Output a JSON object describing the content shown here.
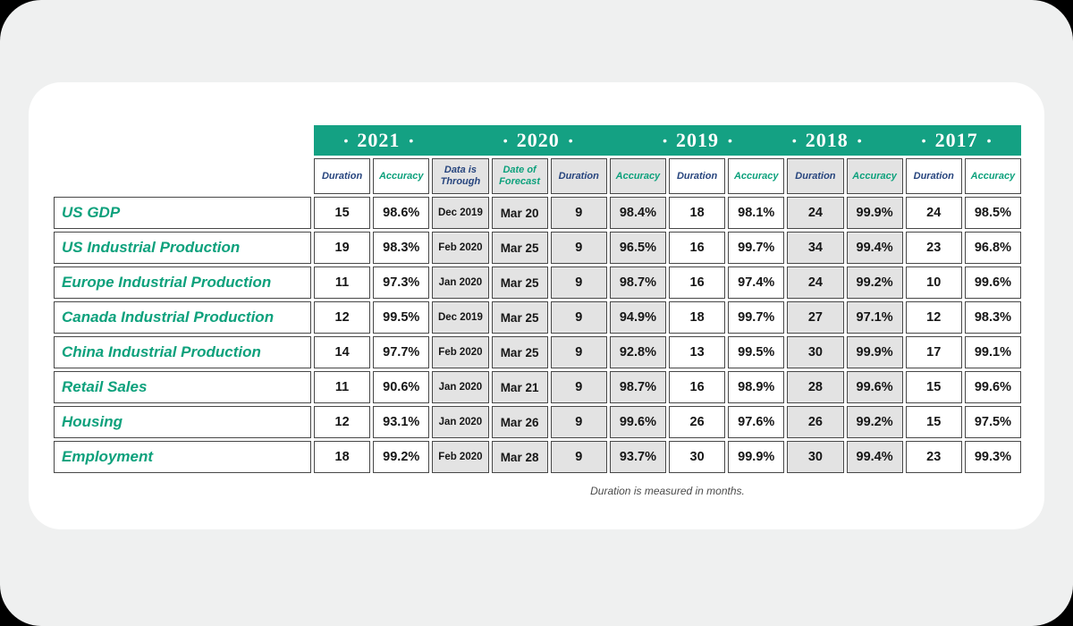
{
  "ui": {
    "bullet": "•",
    "colors": {
      "band_teal": "#14a183",
      "header_navy": "#27457e",
      "header_green": "#0da17c",
      "shade_gray": "#e3e3e3",
      "frame_gray": "#eff0f0",
      "border": "#474747"
    }
  },
  "chart_data": {
    "type": "table",
    "year_groups": [
      {
        "label": "2021",
        "span": 2
      },
      {
        "label": "2020",
        "span": 4
      },
      {
        "label": "2019",
        "span": 2
      },
      {
        "label": "2018",
        "span": 2
      },
      {
        "label": "2017",
        "span": 2
      }
    ],
    "columns": [
      {
        "label": "Duration",
        "color": "navy",
        "shade": false,
        "kind": "duration"
      },
      {
        "label": "Accuracy",
        "color": "green",
        "shade": false,
        "kind": "accuracy"
      },
      {
        "label": "Data is Through",
        "color": "navy",
        "shade": true,
        "kind": "data-through"
      },
      {
        "label": "Date of Forecast",
        "color": "green",
        "shade": true,
        "kind": "forecast-date"
      },
      {
        "label": "Duration",
        "color": "navy",
        "shade": true,
        "kind": "duration"
      },
      {
        "label": "Accuracy",
        "color": "green",
        "shade": true,
        "kind": "accuracy"
      },
      {
        "label": "Duration",
        "color": "navy",
        "shade": false,
        "kind": "duration"
      },
      {
        "label": "Accuracy",
        "color": "green",
        "shade": false,
        "kind": "accuracy"
      },
      {
        "label": "Duration",
        "color": "navy",
        "shade": true,
        "kind": "duration"
      },
      {
        "label": "Accuracy",
        "color": "green",
        "shade": true,
        "kind": "accuracy"
      },
      {
        "label": "Duration",
        "color": "navy",
        "shade": false,
        "kind": "duration"
      },
      {
        "label": "Accuracy",
        "color": "green",
        "shade": false,
        "kind": "accuracy"
      }
    ],
    "rows": [
      {
        "label": "US GDP",
        "values": [
          "15",
          "98.6%",
          "Dec 2019",
          "Mar 20",
          "9",
          "98.4%",
          "18",
          "98.1%",
          "24",
          "99.9%",
          "24",
          "98.5%"
        ]
      },
      {
        "label": "US Industrial Production",
        "values": [
          "19",
          "98.3%",
          "Feb 2020",
          "Mar 25",
          "9",
          "96.5%",
          "16",
          "99.7%",
          "34",
          "99.4%",
          "23",
          "96.8%"
        ]
      },
      {
        "label": "Europe Industrial Production",
        "values": [
          "11",
          "97.3%",
          "Jan 2020",
          "Mar 25",
          "9",
          "98.7%",
          "16",
          "97.4%",
          "24",
          "99.2%",
          "10",
          "99.6%"
        ]
      },
      {
        "label": "Canada Industrial Production",
        "values": [
          "12",
          "99.5%",
          "Dec 2019",
          "Mar 25",
          "9",
          "94.9%",
          "18",
          "99.7%",
          "27",
          "97.1%",
          "12",
          "98.3%"
        ]
      },
      {
        "label": "China Industrial Production",
        "values": [
          "14",
          "97.7%",
          "Feb 2020",
          "Mar 25",
          "9",
          "92.8%",
          "13",
          "99.5%",
          "30",
          "99.9%",
          "17",
          "99.1%"
        ]
      },
      {
        "label": "Retail Sales",
        "values": [
          "11",
          "90.6%",
          "Jan 2020",
          "Mar 21",
          "9",
          "98.7%",
          "16",
          "98.9%",
          "28",
          "99.6%",
          "15",
          "99.6%"
        ]
      },
      {
        "label": "Housing",
        "values": [
          "12",
          "93.1%",
          "Jan 2020",
          "Mar 26",
          "9",
          "99.6%",
          "26",
          "97.6%",
          "26",
          "99.2%",
          "15",
          "97.5%"
        ]
      },
      {
        "label": "Employment",
        "values": [
          "18",
          "99.2%",
          "Feb 2020",
          "Mar 28",
          "9",
          "93.7%",
          "30",
          "99.9%",
          "30",
          "99.4%",
          "23",
          "99.3%"
        ]
      }
    ],
    "footnote": "Duration is measured in months."
  }
}
